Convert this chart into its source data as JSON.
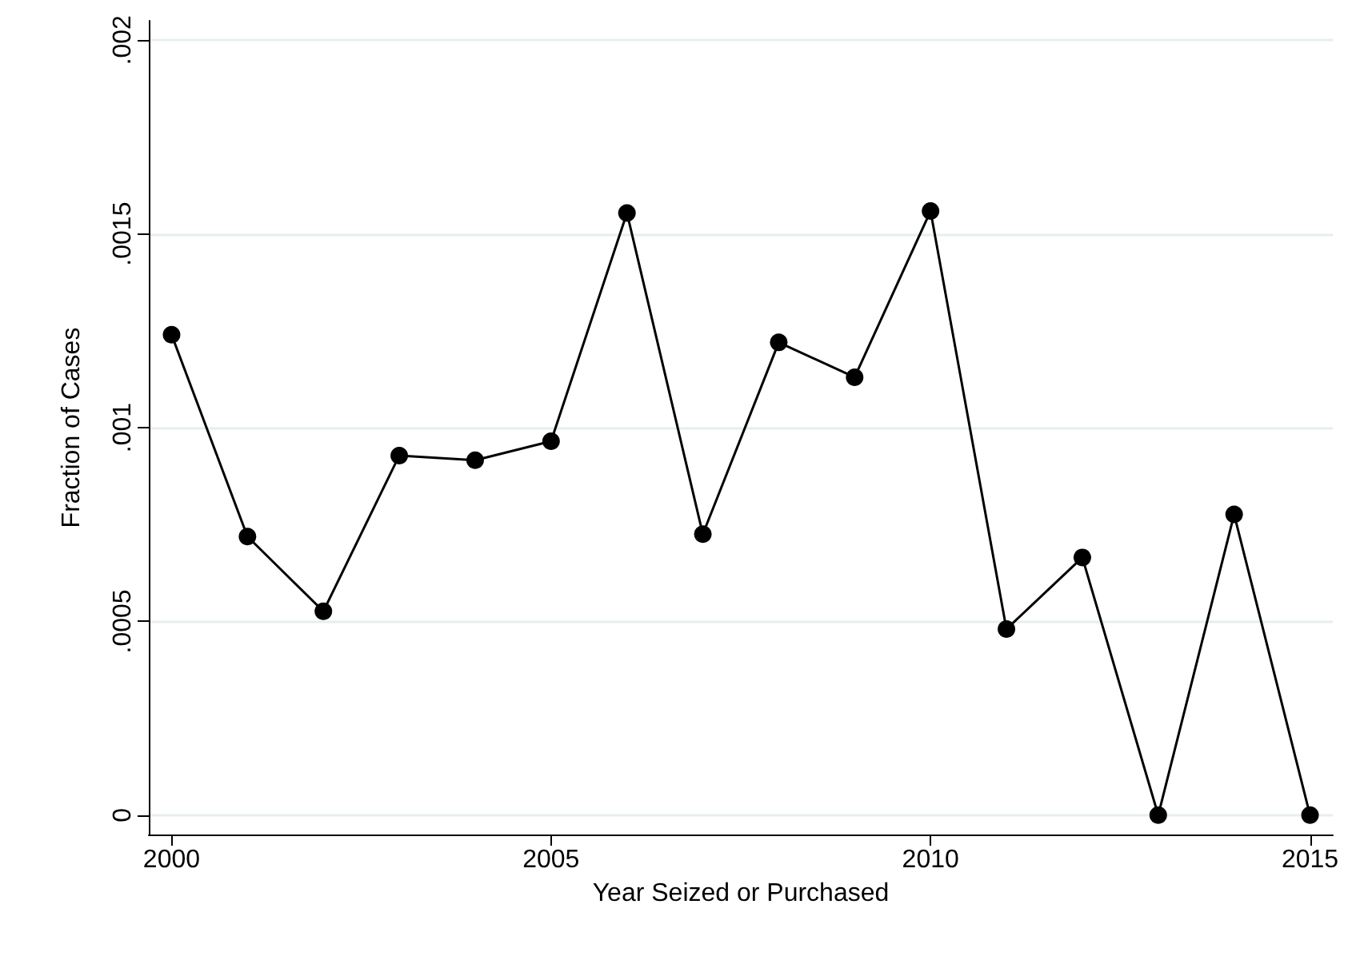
{
  "chart_data": {
    "type": "line",
    "xlabel": "Year Seized or Purchased",
    "ylabel": "Fraction of Cases",
    "x": [
      2000,
      2001,
      2002,
      2003,
      2004,
      2005,
      2006,
      2007,
      2008,
      2009,
      2010,
      2011,
      2012,
      2013,
      2014,
      2015
    ],
    "series": [
      {
        "color": "#000000",
        "values": [
          0.00124,
          0.000719,
          0.000526,
          0.000928,
          0.000916,
          0.000965,
          0.001554,
          0.000725,
          0.00122,
          0.00113,
          0.001559,
          0.00048,
          0.000665,
          0,
          0.000776,
          0
        ]
      }
    ],
    "xlim": [
      1999.7,
      2015.3
    ],
    "xticks": [
      2000,
      2005,
      2010,
      2015
    ],
    "ylim": [
      -5e-05,
      0.00205
    ],
    "yticks": [
      0,
      {
        "value": 0.0005,
        "label": ".0005"
      },
      {
        "value": 0.001,
        "label": ".001"
      },
      {
        "value": 0.0015,
        "label": ".0015"
      },
      {
        "value": 0.002,
        "label": ".002"
      }
    ],
    "grid": "y",
    "marker": "circle",
    "line_style": "solid"
  }
}
